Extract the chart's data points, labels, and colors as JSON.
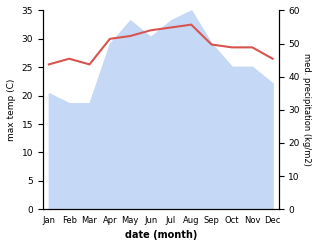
{
  "months": [
    "Jan",
    "Feb",
    "Mar",
    "Apr",
    "May",
    "Jun",
    "Jul",
    "Aug",
    "Sep",
    "Oct",
    "Nov",
    "Dec"
  ],
  "month_x": [
    0,
    1,
    2,
    3,
    4,
    5,
    6,
    7,
    8,
    9,
    10,
    11
  ],
  "temperature": [
    25.5,
    26.5,
    25.5,
    30.0,
    30.5,
    31.5,
    32.0,
    32.5,
    29.0,
    28.5,
    28.5,
    26.5
  ],
  "precipitation": [
    35,
    32,
    32,
    50,
    57,
    52,
    57,
    60,
    50,
    43,
    43,
    38
  ],
  "temp_color": "#d9534f",
  "precip_fill_color": "#c5d8f5",
  "temp_ylim": [
    0,
    35
  ],
  "precip_ylim": [
    0,
    60
  ],
  "temp_yticks": [
    0,
    5,
    10,
    15,
    20,
    25,
    30,
    35
  ],
  "precip_yticks": [
    0,
    10,
    20,
    30,
    40,
    50,
    60
  ],
  "xlabel": "date (month)",
  "ylabel_left": "max temp (C)",
  "ylabel_right": "med. precipitation (kg/m2)",
  "bg_color": "#ffffff"
}
